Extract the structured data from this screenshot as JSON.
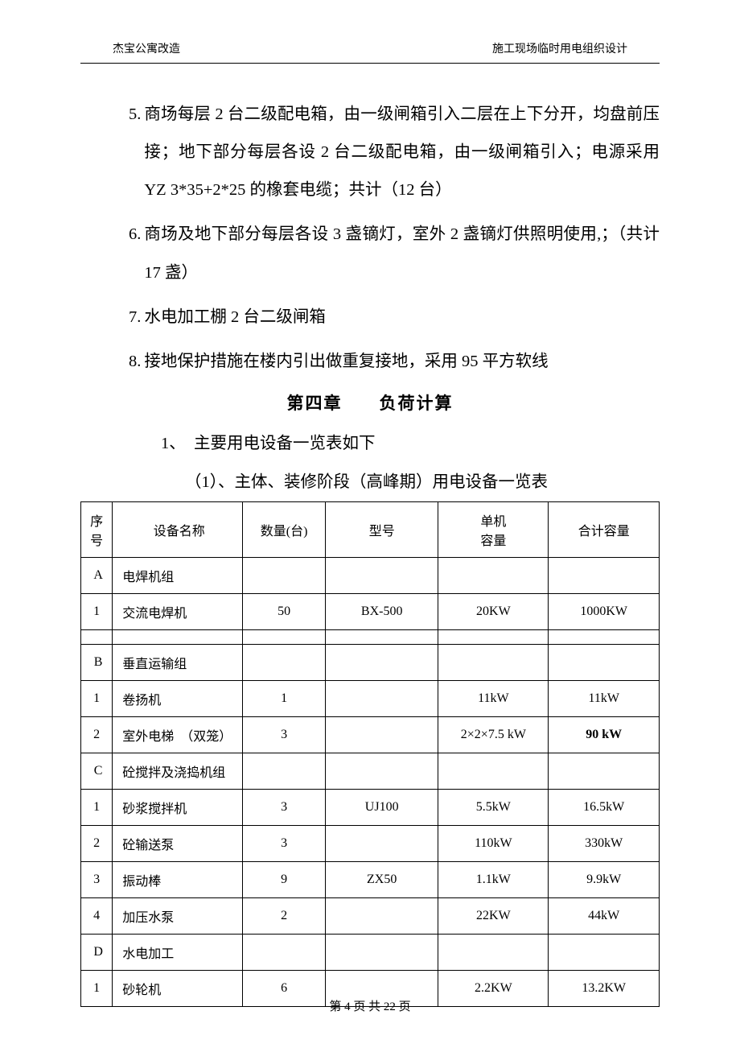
{
  "header": {
    "left": "杰宝公寓改造",
    "right": "施工现场临时用电组织设计"
  },
  "list": [
    {
      "num": "5.",
      "text": "商场每层 2 台二级配电箱，由一级闸箱引入二层在上下分开，均盘前压接；地下部分每层各设 2 台二级配电箱，由一级闸箱引入；电源采用 YZ 3*35+2*25 的橡套电缆；共计（12 台）"
    },
    {
      "num": "6.",
      "text": "商场及地下部分每层各设 3 盏镝灯，室外 2 盏镝灯供照明使用,；（共计 17 盏）"
    },
    {
      "num": "7.",
      "text": "水电加工棚 2 台二级闸箱"
    },
    {
      "num": "8.",
      "text": "接地保护措施在楼内引出做重复接地，采用 95 平方软线"
    }
  ],
  "chapter_title": "第四章　　负荷计算",
  "sub_line": "1、　主要用电设备一览表如下",
  "table_caption": "（1）、主体、装修阶段（高峰期）用电设备一览表",
  "table": {
    "headers": {
      "seq": "序号",
      "name": "设备名称",
      "qty": "数量(台)",
      "model": "型号",
      "unit_line1": "单机",
      "unit_line2": "容量",
      "total": "合计容量"
    },
    "groups": [
      {
        "label": "A",
        "name": "电焊机组",
        "rows": [
          {
            "seq": "1",
            "name": "交流电焊机",
            "qty": "50",
            "model": "BX-500",
            "unit": "20KW",
            "total": "1000KW"
          }
        ],
        "hasEmptyAfter": true
      },
      {
        "label": "B",
        "name": "垂直运输组",
        "rows": [
          {
            "seq": "1",
            "name": "卷扬机",
            "qty": "1",
            "model": "",
            "unit": "11kW",
            "total": "11kW"
          },
          {
            "seq": "2",
            "name": "室外电梯　（双笼）",
            "qty": "3",
            "model": "",
            "unit": "2×2×7.5 kW",
            "total": "90 kW",
            "totalBold": true
          }
        ]
      },
      {
        "label": "C",
        "name": "砼搅拌及浇捣机组",
        "rows": [
          {
            "seq": "1",
            "name": "砂浆搅拌机",
            "qty": "3",
            "model": "UJ100",
            "unit": "5.5kW",
            "total": "16.5kW"
          },
          {
            "seq": "2",
            "name": "砼输送泵",
            "qty": "3",
            "model": "",
            "unit": "110kW",
            "total": "330kW"
          },
          {
            "seq": "3",
            "name": "振动棒",
            "qty": "9",
            "model": "ZX50",
            "unit": "1.1kW",
            "total": "9.9kW"
          },
          {
            "seq": "4",
            "name": "加压水泵",
            "qty": "2",
            "model": "",
            "unit": "22KW",
            "total": "44kW"
          }
        ]
      },
      {
        "label": "D",
        "name": "水电加工",
        "rows": [
          {
            "seq": "1",
            "name": "砂轮机",
            "qty": "6",
            "model": "",
            "unit": "2.2KW",
            "total": "13.2KW"
          }
        ]
      }
    ]
  },
  "footer": "第 4 页  共 22 页"
}
